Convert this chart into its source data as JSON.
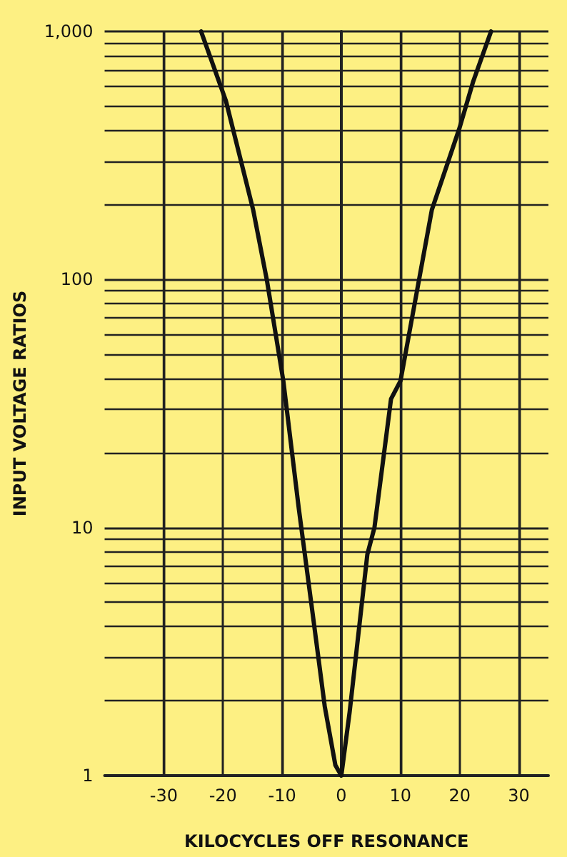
{
  "chart_data": {
    "type": "line",
    "xlabel": "KILOCYCLES OFF RESONANCE",
    "ylabel": "INPUT VOLTAGE RATIOS",
    "log": "y",
    "grid": true,
    "marker": "none",
    "line_style": "solid",
    "xlim": [
      -40,
      35
    ],
    "xticks": [
      -30,
      -20,
      -10,
      0,
      10,
      20,
      30
    ],
    "ylim": [
      1,
      1000
    ],
    "yticks": [
      1,
      10,
      100,
      {
        "value": 1000,
        "label": "1,000"
      }
    ],
    "series": [
      {
        "color": "#111111",
        "x": [
          -23.7,
          -19.5,
          -14.9,
          -12.6,
          -9.8,
          -7.2,
          -5.1,
          -2.8,
          -1,
          0,
          1.4,
          4.4,
          5.6,
          8.4,
          10,
          15.3,
          20,
          22.3,
          25.3
        ],
        "values": [
          1000,
          525,
          191,
          100,
          39,
          12,
          5,
          1.9,
          1.1,
          1,
          1.8,
          7.8,
          10,
          33,
          39,
          191,
          410,
          630,
          1000
        ]
      }
    ]
  }
}
